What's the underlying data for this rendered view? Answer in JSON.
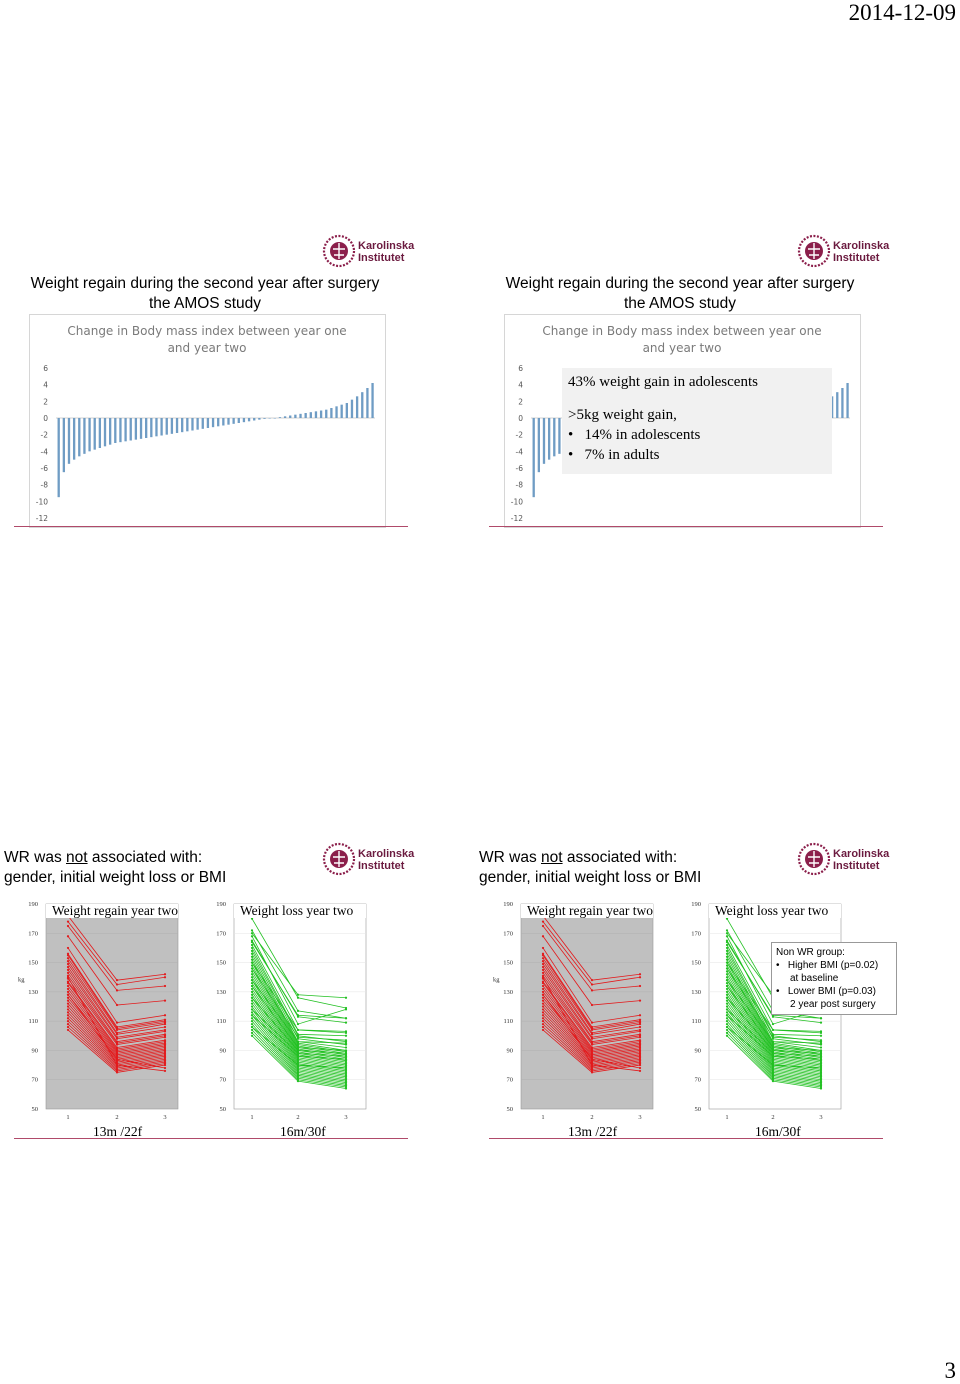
{
  "header": {
    "date": "2014-12-09"
  },
  "footer": {
    "page_number": "3"
  },
  "logo": {
    "line1": "Karolinska",
    "line2": "Institutet"
  },
  "slide1": {
    "title_line1": "Weight regain during the second year after surgery",
    "title_line2": "the AMOS study"
  },
  "slide2": {
    "title_line1": "Weight regain during the second year after surgery",
    "title_line2": "the AMOS study",
    "overlay": {
      "line1": "43% weight gain in adolescents",
      "line2": ">5kg  weight gain,",
      "bullet1": "14% in adolescents",
      "bullet2": "7% in adults"
    }
  },
  "slide3": {
    "title_line1_pre": "WR was ",
    "title_line1_underlined": "not",
    "title_line1_post": " associated with:",
    "title_line2": "gender, initial weight loss or BMI",
    "left_caption": "13m /22f",
    "right_caption": "16m/30f"
  },
  "slide4": {
    "title_line1_pre": "WR was ",
    "title_line1_underlined": "not",
    "title_line1_post": " associated with:",
    "title_line2": "gender, initial weight loss or BMI",
    "left_caption": "13m /22f",
    "right_caption": "16m/30f",
    "note": {
      "heading": "Non WR group:",
      "bullet1a": "Higher BMI (p=0.02)",
      "bullet1b": "at baseline",
      "bullet2a": "Lower BMI (p=0.03)",
      "bullet2b": "2 year post surgery"
    }
  },
  "colors": {
    "bar": "#6f9cc4",
    "regain": "#e31a1c",
    "loss": "#22c022",
    "accent": "#b04a6a",
    "plot_bg": "#c0c0c0"
  },
  "chart_data": [
    {
      "type": "bar",
      "title": "Change in Body mass index between year one and year two",
      "xlabel": "",
      "ylabel": "",
      "ylim": [
        -12,
        6
      ],
      "yticks": [
        6,
        4,
        2,
        0,
        -2,
        -4,
        -6,
        -8,
        -10,
        -12
      ],
      "note": "sorted individual BMI changes, ascending",
      "values": [
        -9.5,
        -6.5,
        -5.5,
        -5,
        -4.6,
        -4.3,
        -4,
        -3.8,
        -3.6,
        -3.4,
        -3.2,
        -3,
        -2.9,
        -2.8,
        -2.7,
        -2.6,
        -2.5,
        -2.4,
        -2.3,
        -2.2,
        -2.1,
        -2,
        -1.9,
        -1.8,
        -1.7,
        -1.6,
        -1.5,
        -1.4,
        -1.3,
        -1.2,
        -1.1,
        -1.0,
        -0.9,
        -0.8,
        -0.7,
        -0.6,
        -0.5,
        -0.4,
        -0.3,
        -0.2,
        -0.1,
        0,
        0,
        0.1,
        0.2,
        0.3,
        0.4,
        0.5,
        0.6,
        0.7,
        0.8,
        0.9,
        1.0,
        1.2,
        1.4,
        1.6,
        1.8,
        2.2,
        2.6,
        3.1,
        3.6,
        4.2
      ]
    },
    {
      "type": "line",
      "title": "Weight regain year two",
      "ylabel": "kg",
      "ylim": [
        50,
        190
      ],
      "yticks": [
        190,
        170,
        150,
        130,
        110,
        90,
        70,
        50
      ],
      "x": [
        1,
        2,
        3
      ],
      "series_values": [
        [
          182,
          138,
          142
        ],
        [
          178,
          135,
          140
        ],
        [
          175,
          131,
          134
        ],
        [
          168,
          121,
          124
        ],
        [
          160,
          109,
          114
        ],
        [
          156,
          106,
          111
        ],
        [
          155,
          105,
          110
        ],
        [
          153,
          104,
          109
        ],
        [
          151,
          102,
          108
        ],
        [
          149,
          101,
          106
        ],
        [
          147,
          99,
          104
        ],
        [
          145,
          98,
          103
        ],
        [
          143,
          96,
          101
        ],
        [
          141,
          95,
          100
        ],
        [
          139,
          94,
          99
        ],
        [
          137,
          92,
          97
        ],
        [
          136,
          91,
          96
        ],
        [
          134,
          90,
          95
        ],
        [
          132,
          89,
          94
        ],
        [
          130,
          88,
          93
        ],
        [
          128,
          87,
          92
        ],
        [
          126,
          86,
          91
        ],
        [
          124,
          85,
          90
        ],
        [
          122,
          84,
          89
        ],
        [
          120,
          83,
          88
        ],
        [
          118,
          82,
          87
        ],
        [
          116,
          81,
          86
        ],
        [
          114,
          80,
          85
        ],
        [
          112,
          79,
          84
        ],
        [
          110,
          78,
          83
        ],
        [
          108,
          77,
          82
        ],
        [
          106,
          76,
          81
        ],
        [
          104,
          75,
          80
        ],
        [
          140,
          80,
          76
        ],
        [
          128,
          84,
          78
        ]
      ]
    },
    {
      "type": "line",
      "title": "Weight loss year two",
      "ylim": [
        50,
        190
      ],
      "yticks": [
        190,
        170,
        150,
        130,
        110,
        90,
        70,
        50
      ],
      "x": [
        1,
        2,
        3
      ],
      "series_values": [
        [
          180,
          126,
          119
        ],
        [
          172,
          117,
          112
        ],
        [
          168,
          108,
          118
        ],
        [
          165,
          113,
          109
        ],
        [
          162,
          104,
          103
        ],
        [
          160,
          101,
          100
        ],
        [
          158,
          100,
          96
        ],
        [
          156,
          98,
          94
        ],
        [
          154,
          96,
          92
        ],
        [
          152,
          95,
          90
        ],
        [
          150,
          94,
          89
        ],
        [
          148,
          93,
          88
        ],
        [
          146,
          92,
          87
        ],
        [
          144,
          91,
          86
        ],
        [
          142,
          90,
          85
        ],
        [
          140,
          89,
          84
        ],
        [
          138,
          88,
          83
        ],
        [
          136,
          87,
          82
        ],
        [
          134,
          86,
          81
        ],
        [
          132,
          85,
          80
        ],
        [
          130,
          84,
          79
        ],
        [
          128,
          83,
          78
        ],
        [
          126,
          82,
          77
        ],
        [
          124,
          81,
          76
        ],
        [
          122,
          80,
          75
        ],
        [
          120,
          79,
          74
        ],
        [
          118,
          78,
          73
        ],
        [
          116,
          77,
          72
        ],
        [
          114,
          76,
          71
        ],
        [
          112,
          75,
          70
        ],
        [
          110,
          74,
          69
        ],
        [
          108,
          73,
          68
        ],
        [
          106,
          72,
          67
        ],
        [
          104,
          71,
          66
        ],
        [
          102,
          70,
          65
        ],
        [
          100,
          69,
          64
        ],
        [
          170,
          128,
          126
        ],
        [
          164,
          114,
          112
        ],
        [
          150,
          104,
          102
        ],
        [
          146,
          99,
          97
        ],
        [
          138,
          96,
          95
        ],
        [
          134,
          92,
          90
        ],
        [
          126,
          90,
          88
        ],
        [
          118,
          88,
          86
        ],
        [
          114,
          86,
          84
        ],
        [
          106,
          80,
          78
        ]
      ]
    }
  ]
}
